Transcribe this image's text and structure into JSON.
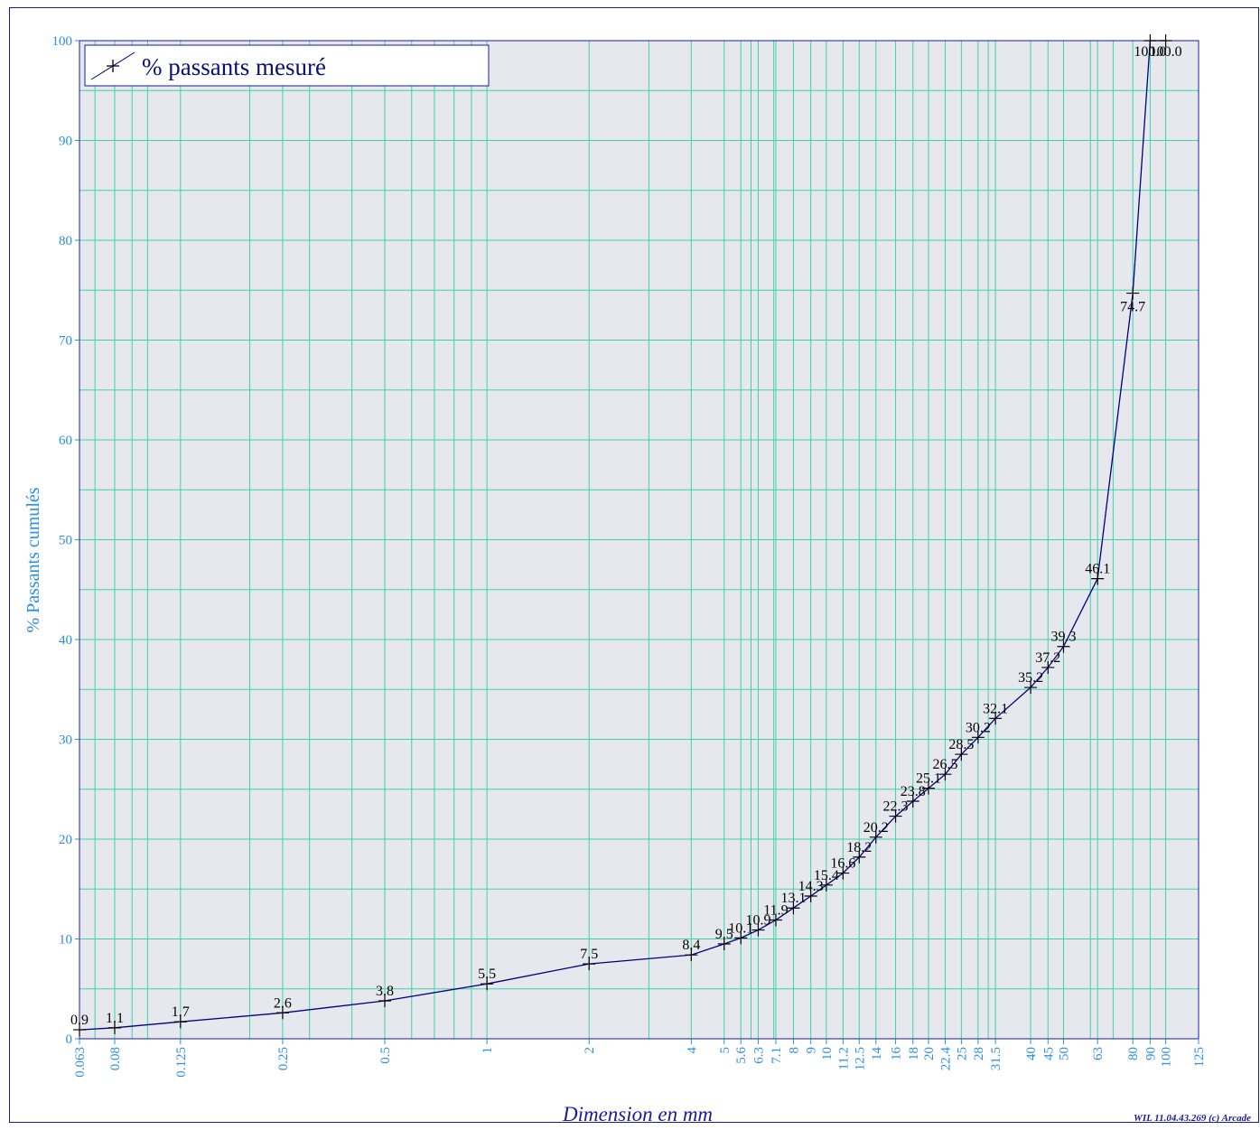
{
  "chart_data": {
    "type": "line",
    "xscale": "log",
    "xlabel": "Dimension en mm",
    "ylabel": "% Passants cumulés",
    "xlim": [
      0.063,
      125
    ],
    "ylim": [
      0,
      100
    ],
    "grid": true,
    "legend_position": "top-left",
    "x_ticks": [
      0.063,
      0.08,
      0.125,
      0.25,
      0.5,
      1,
      2,
      4,
      5,
      5.6,
      6.3,
      7.1,
      8,
      9,
      10,
      11.2,
      12.5,
      14,
      16,
      18,
      20,
      22.4,
      25,
      28,
      31.5,
      40,
      45,
      50,
      63,
      80,
      90,
      100,
      125
    ],
    "x_tick_labels": [
      "0.063",
      "0.08",
      "0.125",
      "0.25",
      "0.5",
      "1",
      "2",
      "4",
      "5",
      "5.6",
      "6.3",
      "7.1",
      "8",
      "9",
      "10",
      "11.2",
      "12.5",
      "14",
      "16",
      "18",
      "20",
      "22.4",
      "25",
      "28",
      "31.5",
      "40",
      "45",
      "50",
      "63",
      "80",
      "90",
      "100",
      "125"
    ],
    "y_ticks": [
      0,
      10,
      20,
      30,
      40,
      50,
      60,
      70,
      80,
      90,
      100
    ],
    "y_tick_labels": [
      "0",
      "10",
      "20",
      "30",
      "40",
      "50",
      "60",
      "70",
      "80",
      "90",
      "100"
    ],
    "series": [
      {
        "name": "% passants mesuré",
        "color": "#000080",
        "x": [
          0.063,
          0.08,
          0.125,
          0.25,
          0.5,
          1,
          2,
          4,
          5,
          5.6,
          6.3,
          7.1,
          8,
          9,
          10,
          11.2,
          12.5,
          14,
          16,
          18,
          20,
          22.4,
          25,
          28,
          31.5,
          40,
          45,
          50,
          63,
          80,
          90,
          100
        ],
        "y": [
          0.9,
          1.1,
          1.7,
          2.6,
          3.8,
          5.5,
          7.5,
          8.4,
          9.5,
          10.1,
          10.9,
          11.9,
          13.1,
          14.3,
          15.4,
          16.6,
          18.2,
          20.2,
          22.3,
          23.8,
          25.1,
          26.5,
          28.5,
          30.2,
          32.1,
          35.2,
          37.2,
          39.3,
          46.1,
          74.7,
          100.0,
          100.0
        ],
        "labels": [
          "0.9",
          "1.1",
          "1.7",
          "2.6",
          "3.8",
          "5.5",
          "7.5",
          "8.4",
          "9.5",
          "10.1",
          "10.9",
          "11.9",
          "13.1",
          "14.3",
          "15.4",
          "16.6",
          "18.2",
          "20.2",
          "22.3",
          "23.8",
          "25.1",
          "26.5",
          "28.5",
          "30.2",
          "32.1",
          "35.2",
          "37.2",
          "39.3",
          "46.1",
          "74.7",
          "100.0",
          "100.0"
        ]
      }
    ]
  },
  "footer": {
    "credit": "WIL 11.04.43.269 (c) Arcade"
  },
  "colors": {
    "plot_background": "#e6e8ee",
    "grid": "#3fd2a8",
    "axis_text": "#2a8ee6",
    "series_line": "#000080",
    "frame": "#1a1aa0"
  }
}
